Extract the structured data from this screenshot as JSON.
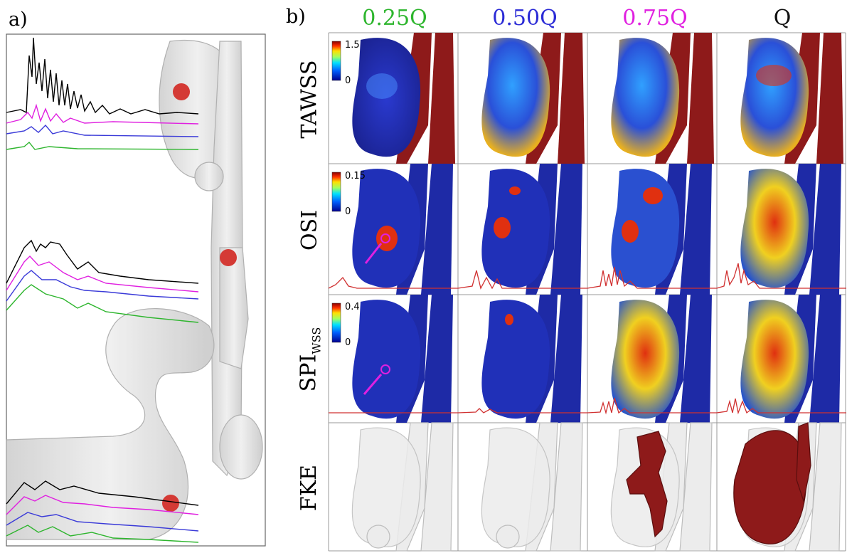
{
  "panel_a": {
    "label": "a)"
  },
  "panel_b": {
    "label": "b)",
    "columns": [
      {
        "label": "0.25Q",
        "color": "#2db52d"
      },
      {
        "label": "0.50Q",
        "color": "#2b2bd6"
      },
      {
        "label": "0.75Q",
        "color": "#e020e0"
      },
      {
        "label": "Q",
        "color": "#111111"
      }
    ],
    "rows": [
      {
        "label": "TAWSS",
        "cb_max": "1.5",
        "cb_min": "0"
      },
      {
        "label": "OSI",
        "cb_max": "0.15",
        "cb_min": "0"
      },
      {
        "label": "SPI",
        "sub": "WSS",
        "cb_max": "0.4",
        "cb_min": "0"
      },
      {
        "label": "FKE"
      }
    ]
  },
  "colors": {
    "vessel_red": "#8e1a1a",
    "surface_blue": "#1e2aa6",
    "highlight_magenta": "#e020e0",
    "probe_red": "#d43a35",
    "trace_black": "#000000",
    "trace_magenta": "#e020e0",
    "trace_blue": "#3a3ad8",
    "trace_green": "#2db52d"
  }
}
